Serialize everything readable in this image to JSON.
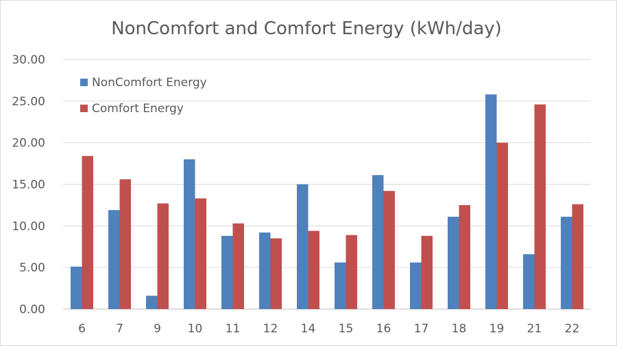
{
  "chart_data": {
    "type": "bar",
    "title": "NonComfort and Comfort Energy (kWh/day)",
    "xlabel": "",
    "ylabel": "",
    "categories": [
      "6",
      "7",
      "9",
      "10",
      "11",
      "12",
      "14",
      "15",
      "16",
      "17",
      "18",
      "19",
      "21",
      "22"
    ],
    "series": [
      {
        "name": "NonComfort Energy",
        "color": "#4f81bd",
        "values": [
          5.1,
          11.9,
          1.6,
          18.0,
          8.8,
          9.2,
          15.0,
          5.6,
          16.1,
          5.6,
          11.1,
          25.8,
          6.6,
          11.1
        ]
      },
      {
        "name": "Comfort Energy",
        "color": "#c0504d",
        "values": [
          18.4,
          15.6,
          12.7,
          13.3,
          10.3,
          8.5,
          9.4,
          8.9,
          14.2,
          8.8,
          12.5,
          20.0,
          24.6,
          12.6
        ]
      }
    ],
    "ylim": [
      0,
      30
    ],
    "yticks": [
      "0.00",
      "5.00",
      "10.00",
      "15.00",
      "20.00",
      "25.00",
      "30.00"
    ],
    "grid": true,
    "legend_position": "top-left"
  }
}
